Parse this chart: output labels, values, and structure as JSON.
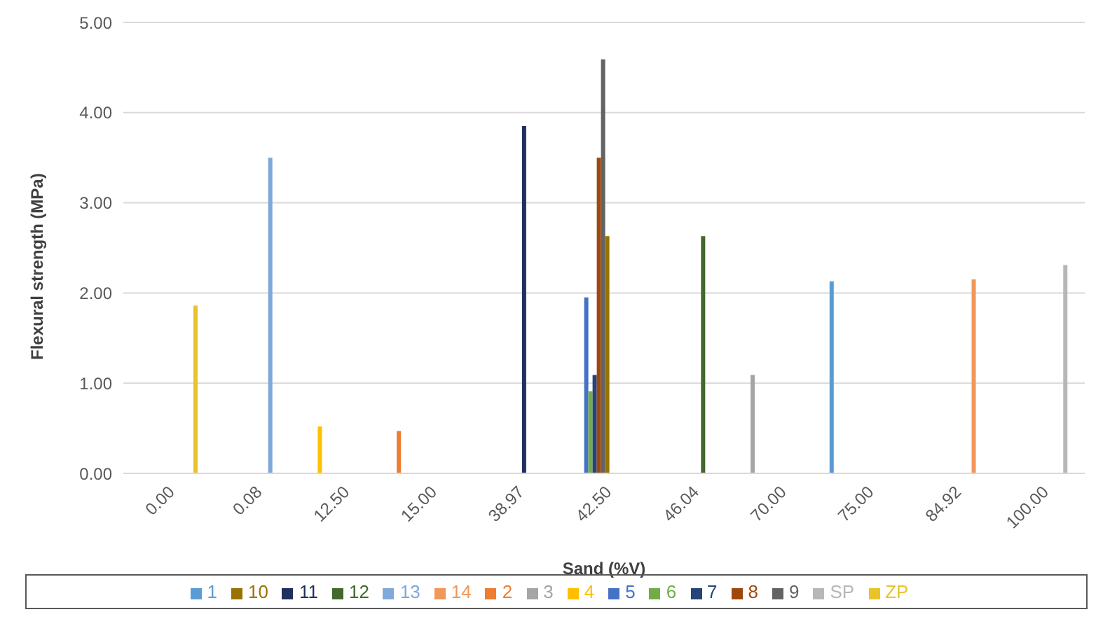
{
  "chart_data": {
    "type": "bar",
    "xlabel": "Sand (%V)",
    "ylabel": "Flexural strength (MPa)",
    "categories": [
      "0.00",
      "0.08",
      "12.50",
      "15.00",
      "38.97",
      "42.50",
      "46.04",
      "70.00",
      "75.00",
      "84.92",
      "100.00"
    ],
    "ylim": [
      0,
      5
    ],
    "yticks": [
      {
        "value": 0,
        "label": "0.00"
      },
      {
        "value": 1,
        "label": "1.00"
      },
      {
        "value": 2,
        "label": "2.00"
      },
      {
        "value": 3,
        "label": "3.00"
      },
      {
        "value": 4,
        "label": "4.00"
      },
      {
        "value": 5,
        "label": "5.00"
      }
    ],
    "grid": "y",
    "legend": "bottom",
    "series": [
      {
        "name": "1",
        "color": "#5b9bd5",
        "values": [
          null,
          null,
          null,
          null,
          null,
          null,
          null,
          null,
          2.13,
          null,
          null
        ]
      },
      {
        "name": "2",
        "color": "#ed7d31",
        "values": [
          null,
          null,
          null,
          0.47,
          null,
          null,
          null,
          null,
          null,
          null,
          null
        ]
      },
      {
        "name": "3",
        "color": "#a5a5a5",
        "values": [
          null,
          null,
          null,
          null,
          null,
          null,
          null,
          1.09,
          null,
          null,
          null
        ]
      },
      {
        "name": "4",
        "color": "#ffc000",
        "values": [
          null,
          null,
          0.52,
          null,
          null,
          null,
          null,
          null,
          null,
          null,
          null
        ]
      },
      {
        "name": "5",
        "color": "#4472c4",
        "values": [
          null,
          null,
          null,
          null,
          null,
          1.95,
          null,
          null,
          null,
          null,
          null
        ]
      },
      {
        "name": "6",
        "color": "#70ad47",
        "values": [
          null,
          null,
          null,
          null,
          null,
          0.91,
          null,
          null,
          null,
          null,
          null
        ]
      },
      {
        "name": "7",
        "color": "#264478",
        "values": [
          null,
          null,
          null,
          null,
          null,
          1.09,
          null,
          null,
          null,
          null,
          null
        ]
      },
      {
        "name": "8",
        "color": "#9e480e",
        "values": [
          null,
          null,
          null,
          null,
          null,
          3.5,
          null,
          null,
          null,
          null,
          null
        ]
      },
      {
        "name": "9",
        "color": "#636363",
        "values": [
          null,
          null,
          null,
          null,
          null,
          4.59,
          null,
          null,
          null,
          null,
          null
        ]
      },
      {
        "name": "10",
        "color": "#997300",
        "values": [
          null,
          null,
          null,
          null,
          null,
          2.63,
          null,
          null,
          null,
          null,
          null
        ]
      },
      {
        "name": "11",
        "color": "#1f2f5e",
        "values": [
          null,
          null,
          null,
          null,
          3.85,
          null,
          null,
          null,
          null,
          null,
          null
        ]
      },
      {
        "name": "12",
        "color": "#43682b",
        "values": [
          null,
          null,
          null,
          null,
          null,
          null,
          2.63,
          null,
          null,
          null,
          null
        ]
      },
      {
        "name": "13",
        "color": "#7fa9d8",
        "values": [
          null,
          3.5,
          null,
          null,
          null,
          null,
          null,
          null,
          null,
          null,
          null
        ]
      },
      {
        "name": "14",
        "color": "#f1975a",
        "values": [
          null,
          null,
          null,
          null,
          null,
          null,
          null,
          null,
          null,
          2.15,
          null
        ]
      },
      {
        "name": "SP",
        "color": "#b7b7b7",
        "values": [
          null,
          null,
          null,
          null,
          null,
          null,
          null,
          null,
          null,
          null,
          2.31
        ]
      },
      {
        "name": "ZP",
        "color": "#e8c42a",
        "values": [
          1.86,
          null,
          null,
          null,
          null,
          null,
          null,
          null,
          null,
          null,
          null
        ]
      }
    ]
  }
}
